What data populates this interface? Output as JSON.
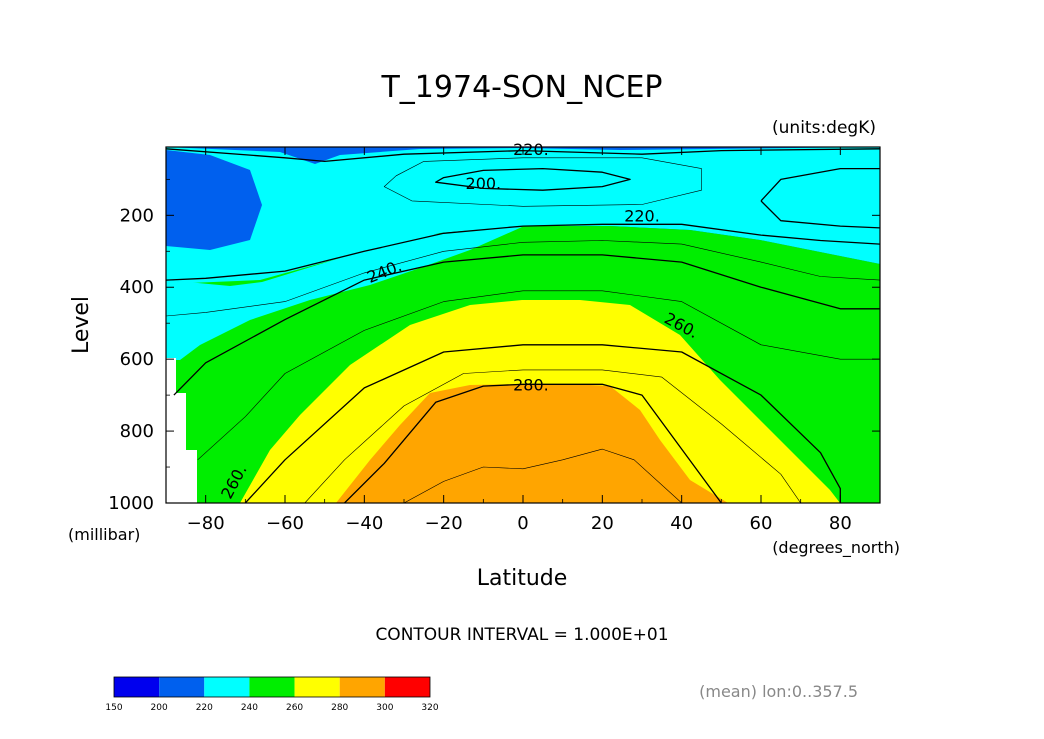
{
  "chart_data": {
    "type": "contour",
    "title": "T_1974-SON_NCEP",
    "units_label": "(units:degK)",
    "xlabel": "Latitude",
    "x_units_label": "(degrees_north)",
    "ylabel": "Level",
    "y_units_label": "(millibar)",
    "xlim": [
      -90,
      90
    ],
    "ylim": [
      1000,
      10
    ],
    "x_ticks": [
      -80,
      -60,
      -40,
      -20,
      0,
      20,
      40,
      60,
      80
    ],
    "x_tick_labels": [
      "−80",
      "−60",
      "−40",
      "−20",
      "0",
      "20",
      "40",
      "60",
      "80"
    ],
    "y_ticks": [
      200,
      400,
      600,
      800,
      1000
    ],
    "y_tick_labels": [
      "200",
      "400",
      "600",
      "800",
      "1000"
    ],
    "contour_interval_text": "CONTOUR INTERVAL = 1.000E+01",
    "contour_labels": [
      {
        "text": "220.",
        "lat": 2,
        "level": 15
      },
      {
        "text": "200.",
        "lat": -10,
        "level": 110
      },
      {
        "text": "220.",
        "lat": 30,
        "level": 200
      },
      {
        "text": "240.",
        "lat": -35,
        "level": 355
      },
      {
        "text": "260.",
        "lat": 40,
        "level": 505
      },
      {
        "text": "280.",
        "lat": 2,
        "level": 670
      },
      {
        "text": "260.",
        "lat": -73,
        "level": 940
      }
    ],
    "contour_lines": [
      {
        "value": 200,
        "points": [
          [
            -20,
            95
          ],
          [
            -10,
            75
          ],
          [
            5,
            70
          ],
          [
            20,
            80
          ],
          [
            27,
            100
          ],
          [
            20,
            120
          ],
          [
            5,
            130
          ],
          [
            -10,
            125
          ],
          [
            -22,
            108
          ]
        ]
      },
      {
        "value": 210,
        "points": [
          [
            -32,
            90
          ],
          [
            -25,
            50
          ],
          [
            0,
            40
          ],
          [
            30,
            40
          ],
          [
            45,
            70
          ],
          [
            45,
            130
          ],
          [
            30,
            170
          ],
          [
            0,
            175
          ],
          [
            -28,
            160
          ],
          [
            -35,
            120
          ]
        ]
      },
      {
        "value": 220,
        "points": [
          [
            -90,
            15
          ],
          [
            -60,
            40
          ],
          [
            -50,
            50
          ],
          [
            -30,
            30
          ],
          [
            0,
            20
          ],
          [
            30,
            30
          ],
          [
            50,
            20
          ],
          [
            90,
            15
          ]
        ]
      },
      {
        "value": 220,
        "points": [
          [
            -90,
            380
          ],
          [
            -80,
            375
          ],
          [
            -60,
            355
          ],
          [
            -40,
            300
          ],
          [
            -20,
            250
          ],
          [
            0,
            230
          ],
          [
            20,
            225
          ],
          [
            40,
            225
          ],
          [
            60,
            255
          ],
          [
            75,
            270
          ],
          [
            90,
            280
          ]
        ]
      },
      {
        "value": 220,
        "points": [
          [
            60,
            160
          ],
          [
            65,
            100
          ],
          [
            80,
            70
          ],
          [
            90,
            70
          ]
        ]
      },
      {
        "value": 220,
        "points": [
          [
            60,
            160
          ],
          [
            65,
            215
          ],
          [
            80,
            230
          ],
          [
            90,
            235
          ]
        ]
      },
      {
        "value": 230,
        "points": [
          [
            -90,
            480
          ],
          [
            -80,
            470
          ],
          [
            -60,
            440
          ],
          [
            -40,
            360
          ],
          [
            -20,
            300
          ],
          [
            0,
            275
          ],
          [
            20,
            270
          ],
          [
            40,
            280
          ],
          [
            60,
            330
          ],
          [
            75,
            370
          ],
          [
            90,
            380
          ]
        ]
      },
      {
        "value": 240,
        "points": [
          [
            -88,
            700
          ],
          [
            -80,
            610
          ],
          [
            -60,
            490
          ],
          [
            -40,
            380
          ],
          [
            -20,
            330
          ],
          [
            0,
            310
          ],
          [
            20,
            310
          ],
          [
            40,
            330
          ],
          [
            60,
            400
          ],
          [
            80,
            460
          ],
          [
            90,
            460
          ]
        ]
      },
      {
        "value": 250,
        "points": [
          [
            -82,
            880
          ],
          [
            -70,
            760
          ],
          [
            -60,
            640
          ],
          [
            -40,
            520
          ],
          [
            -20,
            440
          ],
          [
            0,
            410
          ],
          [
            20,
            410
          ],
          [
            40,
            440
          ],
          [
            60,
            560
          ],
          [
            80,
            600
          ],
          [
            90,
            600
          ]
        ]
      },
      {
        "value": 260,
        "points": [
          [
            -70,
            1000
          ],
          [
            -60,
            880
          ],
          [
            -40,
            680
          ],
          [
            -20,
            580
          ],
          [
            0,
            560
          ],
          [
            20,
            560
          ],
          [
            40,
            580
          ],
          [
            60,
            700
          ],
          [
            75,
            860
          ],
          [
            80,
            960
          ],
          [
            80,
            1000
          ]
        ]
      },
      {
        "value": 270,
        "points": [
          [
            -55,
            1000
          ],
          [
            -45,
            880
          ],
          [
            -30,
            730
          ],
          [
            -15,
            640
          ],
          [
            0,
            630
          ],
          [
            20,
            630
          ],
          [
            35,
            650
          ],
          [
            50,
            780
          ],
          [
            65,
            920
          ],
          [
            70,
            1000
          ]
        ]
      },
      {
        "value": 280,
        "points": [
          [
            -45,
            1000
          ],
          [
            -35,
            890
          ],
          [
            -22,
            720
          ],
          [
            -10,
            675
          ],
          [
            0,
            670
          ],
          [
            20,
            670
          ],
          [
            30,
            700
          ],
          [
            40,
            850
          ],
          [
            50,
            1000
          ]
        ]
      },
      {
        "value": 290,
        "points": [
          [
            -30,
            1000
          ],
          [
            -20,
            940
          ],
          [
            -10,
            900
          ],
          [
            0,
            905
          ],
          [
            10,
            880
          ],
          [
            20,
            850
          ],
          [
            28,
            880
          ],
          [
            40,
            1000
          ]
        ]
      }
    ],
    "colorbar": {
      "levels": [
        150,
        200,
        220,
        240,
        260,
        280,
        300,
        320
      ],
      "level_labels": [
        "150",
        "200",
        "220",
        "240",
        "260",
        "280",
        "300",
        "320"
      ],
      "colors": [
        "#0000ee",
        "#0060ee",
        "#00ffff",
        "#00ee00",
        "#ffff00",
        "#ffa500",
        "#ff0000"
      ]
    },
    "annotation": "(mean) lon:0..357.5"
  }
}
